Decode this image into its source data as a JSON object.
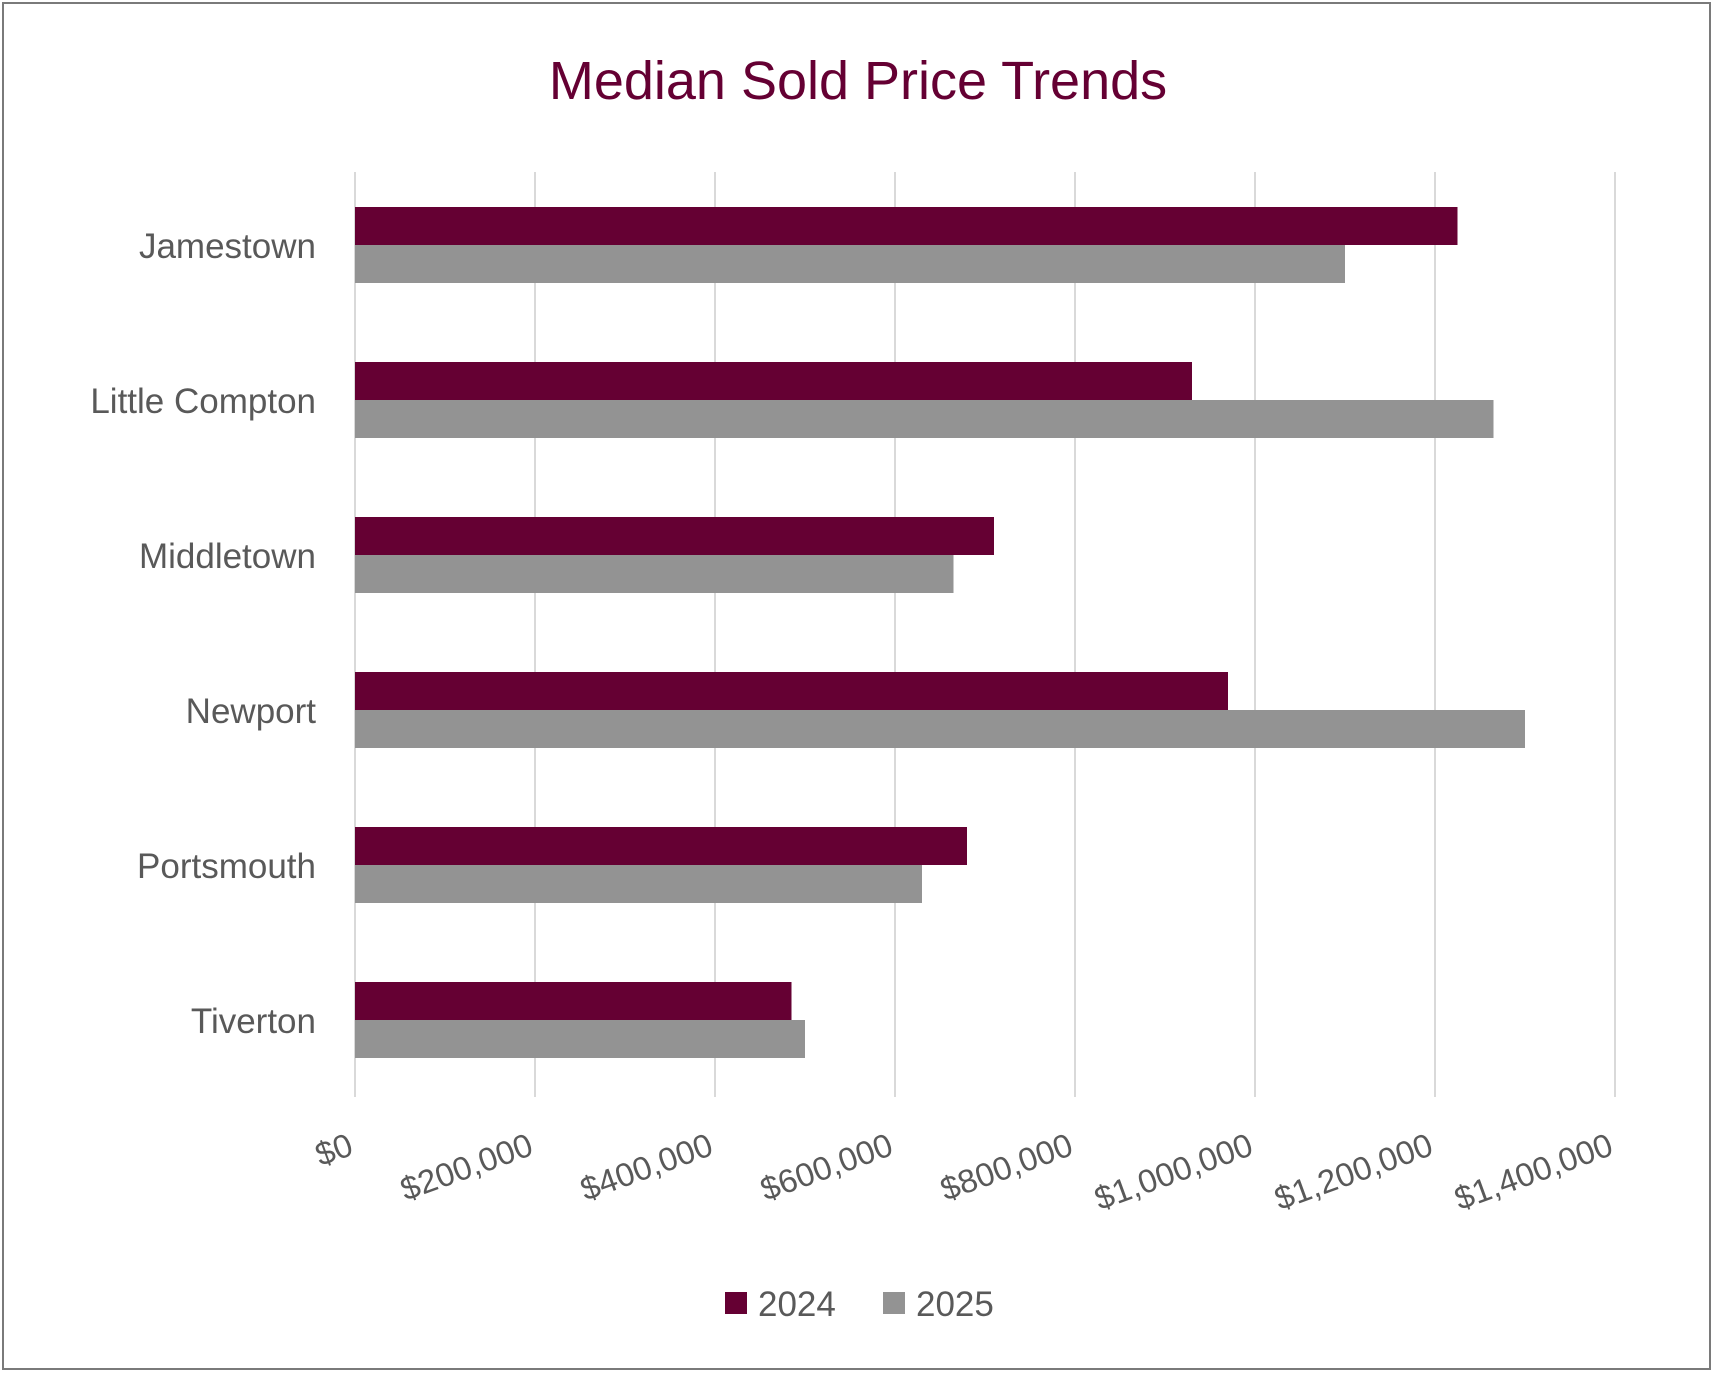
{
  "chart_data": {
    "type": "bar",
    "orientation": "horizontal",
    "title": "Median Sold Price Trends",
    "xlabel": "",
    "ylabel": "",
    "xlim": [
      0,
      1400000
    ],
    "x_ticks": [
      0,
      200000,
      400000,
      600000,
      800000,
      1000000,
      1200000,
      1400000
    ],
    "x_tick_labels": [
      "$0",
      "$200,000",
      "$400,000",
      "$600,000",
      "$800,000",
      "$1,000,000",
      "$1,200,000",
      "$1,400,000"
    ],
    "categories": [
      "Jamestown",
      "Little Compton",
      "Middletown",
      "Newport",
      "Portsmouth",
      "Tiverton"
    ],
    "series": [
      {
        "name": "2024",
        "color": "#650033",
        "values": [
          1225000,
          930000,
          710000,
          970000,
          680000,
          485000
        ]
      },
      {
        "name": "2025",
        "color": "#939393",
        "values": [
          1100000,
          1265000,
          665000,
          1300000,
          630000,
          500000
        ]
      }
    ],
    "legend": "bottom",
    "grid": "vertical",
    "colors": {
      "title": "#650033",
      "text": "#595959",
      "grid": "#d9d9d9"
    }
  }
}
